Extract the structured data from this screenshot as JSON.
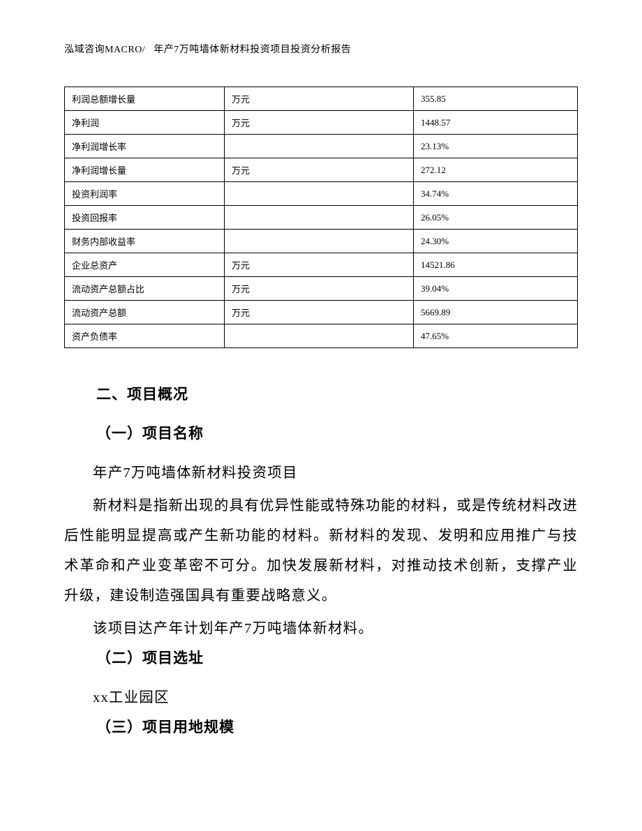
{
  "header": {
    "company": "泓域咨询MACRO/",
    "doc_title": "年产7万吨墙体新材料投资项目投资分析报告"
  },
  "table": {
    "rows": [
      {
        "label": "利润总额增长量",
        "unit": "万元",
        "value": "355.85"
      },
      {
        "label": "净利润",
        "unit": "万元",
        "value": "1448.57"
      },
      {
        "label": "净利润增长率",
        "unit": "",
        "value": "23.13%"
      },
      {
        "label": "净利润增长量",
        "unit": "万元",
        "value": "272.12"
      },
      {
        "label": "投资利润率",
        "unit": "",
        "value": "34.74%"
      },
      {
        "label": "投资回报率",
        "unit": "",
        "value": "26.05%"
      },
      {
        "label": "财务内部收益率",
        "unit": "",
        "value": "24.30%"
      },
      {
        "label": "企业总资产",
        "unit": "万元",
        "value": "14521.86"
      },
      {
        "label": "流动资产总额占比",
        "unit": "万元",
        "value": "39.04%"
      },
      {
        "label": "流动资产总额",
        "unit": "万元",
        "value": "5669.89"
      },
      {
        "label": "资产负债率",
        "unit": "",
        "value": "47.65%"
      }
    ]
  },
  "section2": {
    "heading": "二、项目概况",
    "sub1_heading": "（一）项目名称",
    "sub1_line1": "年产7万吨墙体新材料投资项目",
    "sub1_para": "新材料是指新出现的具有优异性能或特殊功能的材料，或是传统材料改进后性能明显提高或产生新功能的材料。新材料的发现、发明和应用推广与技术革命和产业变革密不可分。加快发展新材料，对推动技术创新，支撑产业升级，建设制造强国具有重要战略意义。",
    "sub1_line3": "该项目达产年计划年产7万吨墙体新材料。",
    "sub2_heading": "（二）项目选址",
    "sub2_line1": "xx工业园区",
    "sub3_heading": "（三）项目用地规模"
  }
}
